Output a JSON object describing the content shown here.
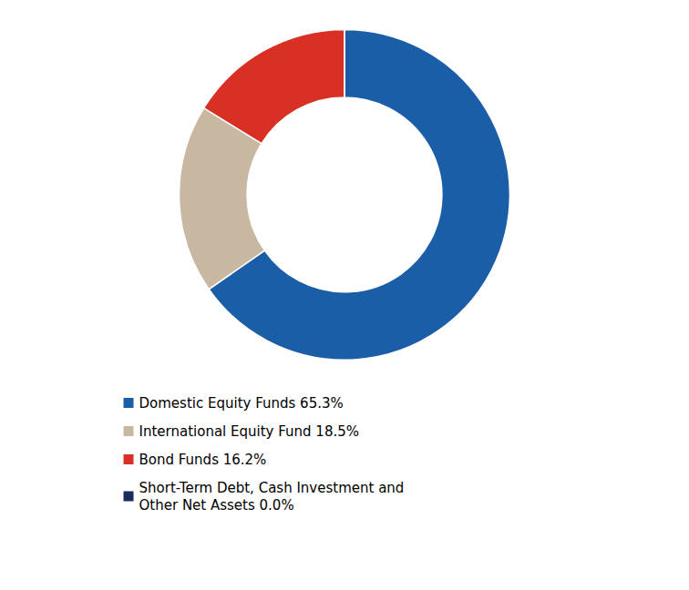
{
  "chart_data": {
    "type": "donut",
    "categories": [
      "Domestic Equity Funds 65.3%",
      "International Equity Fund 18.5%",
      "Bond Funds 16.2%",
      "Short-Term Debt, Cash Investment and\nOther Net Assets 0.0%"
    ],
    "values": [
      65.3,
      18.5,
      16.2,
      0.0001
    ],
    "colors": [
      "#1B5EA8",
      "#C8B8A2",
      "#D93025",
      "#1A2B5E"
    ],
    "legend": "bottom"
  }
}
